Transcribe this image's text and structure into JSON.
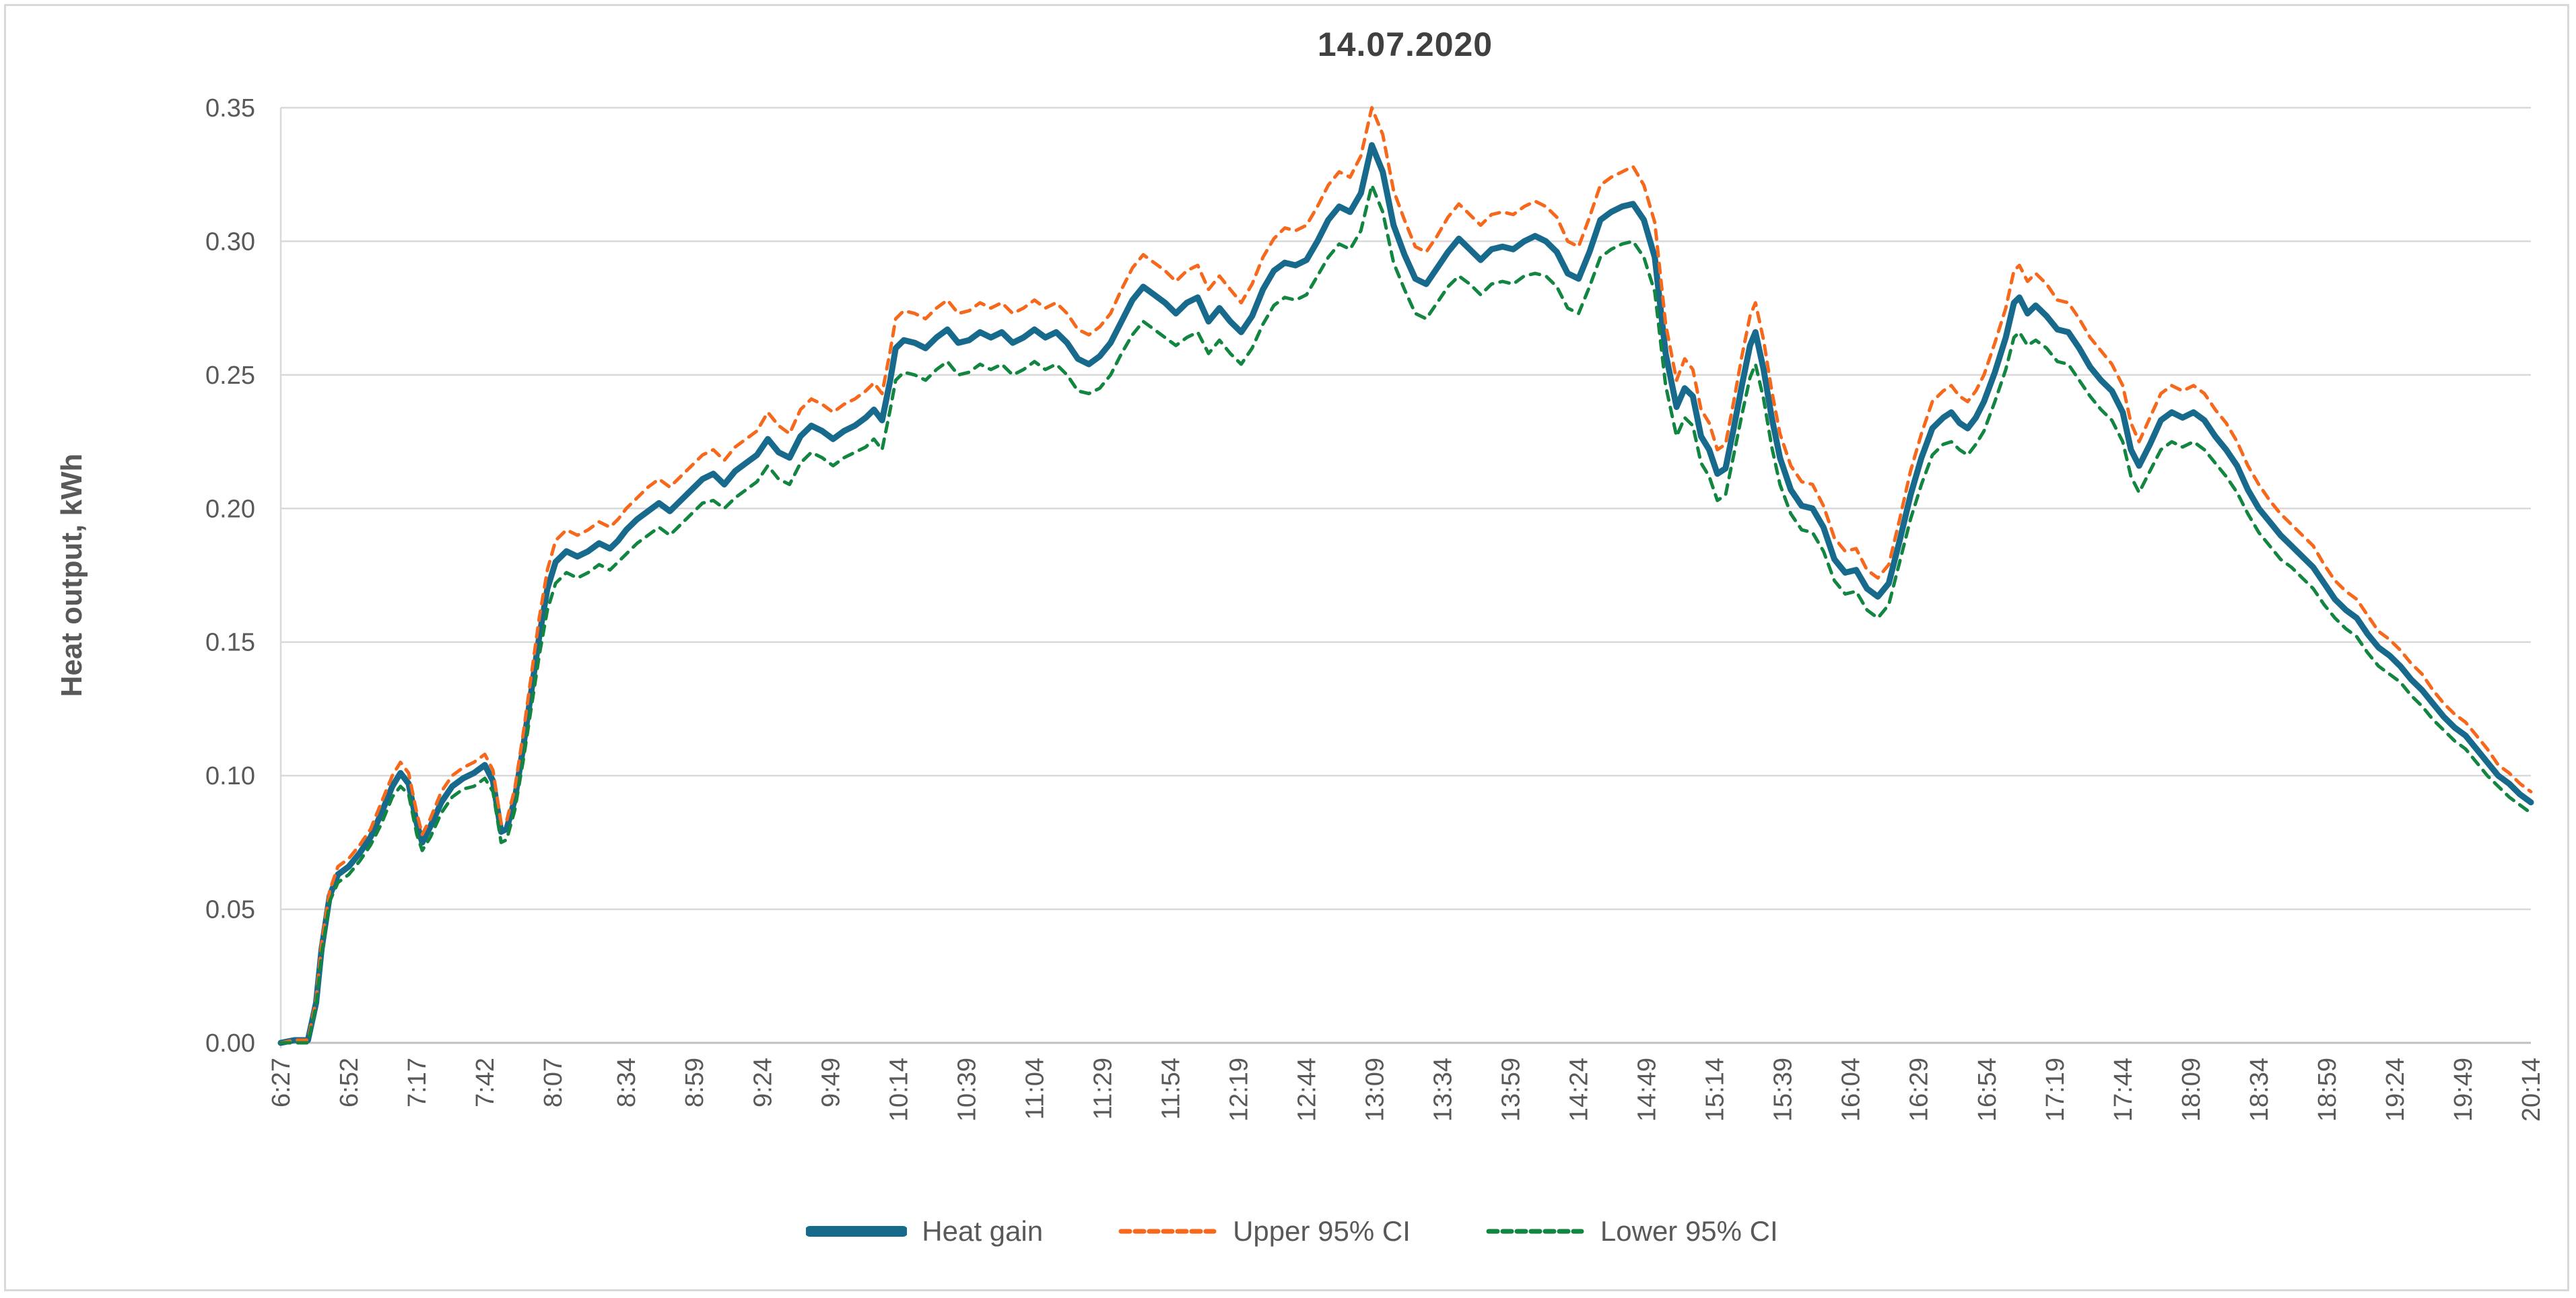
{
  "figure": {
    "title": "14.07.2020"
  },
  "y_axis": {
    "title": "Heat output,  kWh",
    "tick_labels": [
      "0.00",
      "0.05",
      "0.10",
      "0.15",
      "0.20",
      "0.25",
      "0.30",
      "0.35"
    ],
    "min": 0,
    "max": 0.35,
    "step": 0.05
  },
  "x_axis": {
    "tick_labels": [
      "6:27",
      "6:52",
      "7:17",
      "7:42",
      "8:07",
      "8:34",
      "8:59",
      "9:24",
      "9:49",
      "10:14",
      "10:39",
      "11:04",
      "11:29",
      "11:54",
      "12:19",
      "12:44",
      "13:09",
      "13:34",
      "13:59",
      "14:24",
      "14:49",
      "15:14",
      "15:39",
      "16:04",
      "16:29",
      "16:54",
      "17:19",
      "17:44",
      "18:09",
      "18:34",
      "18:59",
      "19:24",
      "19:49",
      "20:14"
    ]
  },
  "legend": {
    "items": [
      {
        "label": "Heat gain",
        "color": "#176a8c",
        "style": "solid"
      },
      {
        "label": "Upper 95% CI",
        "color": "#f6691c",
        "style": "dashed"
      },
      {
        "label": "Lower 95% CI",
        "color": "#128540",
        "style": "dashed"
      }
    ]
  },
  "colors": {
    "grid": "#d9d9d9",
    "axis": "#bfbfbf",
    "tick_text": "#595959",
    "title_text": "#404040",
    "border": "#d9d9d9"
  },
  "chart_data": {
    "type": "line",
    "title": "14.07.2020",
    "xlabel": "",
    "ylabel": "Heat output,  kWh",
    "ylim": [
      0,
      0.35
    ],
    "grid": "horizontal",
    "legend_position": "bottom",
    "x_tick_labels": [
      "6:27",
      "6:52",
      "7:17",
      "7:42",
      "8:07",
      "8:34",
      "8:59",
      "9:24",
      "9:49",
      "10:14",
      "10:39",
      "11:04",
      "11:29",
      "11:54",
      "12:19",
      "12:44",
      "13:09",
      "13:34",
      "13:59",
      "14:24",
      "14:49",
      "15:14",
      "15:39",
      "16:04",
      "16:29",
      "16:54",
      "17:19",
      "17:44",
      "18:09",
      "18:34",
      "18:59",
      "19:24",
      "19:49",
      "20:14"
    ],
    "x": [
      "6:27",
      "6:32",
      "6:37",
      "6:40",
      "6:42",
      "6:45",
      "6:48",
      "6:52",
      "6:56",
      "7:00",
      "7:04",
      "7:08",
      "7:11",
      "7:14",
      "7:17",
      "7:19",
      "7:22",
      "7:26",
      "7:30",
      "7:34",
      "7:38",
      "7:42",
      "7:45",
      "7:48",
      "7:50",
      "7:53",
      "7:56",
      "7:59",
      "8:02",
      "8:05",
      "8:08",
      "8:12",
      "8:16",
      "8:20",
      "8:24",
      "8:28",
      "8:31",
      "8:34",
      "8:38",
      "8:42",
      "8:46",
      "8:50",
      "8:54",
      "8:58",
      "9:02",
      "9:06",
      "9:10",
      "9:14",
      "9:18",
      "9:22",
      "9:26",
      "9:30",
      "9:34",
      "9:38",
      "9:42",
      "9:46",
      "9:50",
      "9:54",
      "9:58",
      "10:02",
      "10:05",
      "10:08",
      "10:11",
      "10:13",
      "10:16",
      "10:20",
      "10:24",
      "10:28",
      "10:32",
      "10:36",
      "10:40",
      "10:44",
      "10:48",
      "10:52",
      "10:56",
      "11:00",
      "11:04",
      "11:08",
      "11:12",
      "11:16",
      "11:20",
      "11:24",
      "11:28",
      "11:32",
      "11:36",
      "11:40",
      "11:44",
      "11:48",
      "11:52",
      "11:56",
      "12:00",
      "12:04",
      "12:08",
      "12:12",
      "12:16",
      "12:20",
      "12:24",
      "12:28",
      "12:32",
      "12:36",
      "12:40",
      "12:44",
      "12:48",
      "12:52",
      "12:56",
      "13:00",
      "13:04",
      "13:08",
      "13:12",
      "13:16",
      "13:20",
      "13:24",
      "13:28",
      "13:32",
      "13:36",
      "13:40",
      "13:44",
      "13:48",
      "13:52",
      "13:56",
      "14:00",
      "14:04",
      "14:08",
      "14:12",
      "14:16",
      "14:20",
      "14:24",
      "14:28",
      "14:32",
      "14:36",
      "14:40",
      "14:44",
      "14:48",
      "14:52",
      "14:56",
      "15:00",
      "15:03",
      "15:06",
      "15:09",
      "15:12",
      "15:15",
      "15:18",
      "15:21",
      "15:24",
      "15:27",
      "15:29",
      "15:32",
      "15:35",
      "15:38",
      "15:42",
      "15:46",
      "15:50",
      "15:54",
      "15:58",
      "16:02",
      "16:06",
      "16:10",
      "16:14",
      "16:18",
      "16:22",
      "16:26",
      "16:30",
      "16:34",
      "16:38",
      "16:41",
      "16:44",
      "16:47",
      "16:50",
      "16:53",
      "16:57",
      "17:01",
      "17:04",
      "17:06",
      "17:09",
      "17:12",
      "17:16",
      "17:20",
      "17:24",
      "17:28",
      "17:32",
      "17:36",
      "17:40",
      "17:44",
      "17:47",
      "17:50",
      "17:54",
      "17:58",
      "18:02",
      "18:06",
      "18:10",
      "18:14",
      "18:18",
      "18:22",
      "18:26",
      "18:30",
      "18:34",
      "18:38",
      "18:42",
      "18:46",
      "18:50",
      "18:54",
      "18:58",
      "19:02",
      "19:06",
      "19:10",
      "19:14",
      "19:18",
      "19:22",
      "19:26",
      "19:30",
      "19:34",
      "19:38",
      "19:42",
      "19:46",
      "19:50",
      "19:54",
      "19:58",
      "20:02",
      "20:06",
      "20:10",
      "20:14"
    ],
    "series": [
      {
        "name": "Heat gain",
        "style": "solid",
        "color": "#176a8c",
        "stroke_width": 9,
        "values": [
          0.0,
          0.001,
          0.001,
          0.015,
          0.035,
          0.055,
          0.063,
          0.066,
          0.071,
          0.077,
          0.086,
          0.096,
          0.101,
          0.097,
          0.082,
          0.075,
          0.081,
          0.09,
          0.096,
          0.099,
          0.101,
          0.104,
          0.098,
          0.079,
          0.08,
          0.091,
          0.11,
          0.131,
          0.152,
          0.17,
          0.18,
          0.184,
          0.182,
          0.184,
          0.187,
          0.185,
          0.188,
          0.192,
          0.196,
          0.199,
          0.202,
          0.199,
          0.203,
          0.207,
          0.211,
          0.213,
          0.209,
          0.214,
          0.217,
          0.22,
          0.226,
          0.221,
          0.219,
          0.227,
          0.231,
          0.229,
          0.226,
          0.229,
          0.231,
          0.234,
          0.237,
          0.233,
          0.248,
          0.26,
          0.263,
          0.262,
          0.26,
          0.264,
          0.267,
          0.262,
          0.263,
          0.266,
          0.264,
          0.266,
          0.262,
          0.264,
          0.267,
          0.264,
          0.266,
          0.262,
          0.256,
          0.254,
          0.257,
          0.262,
          0.27,
          0.278,
          0.283,
          0.28,
          0.277,
          0.273,
          0.277,
          0.279,
          0.27,
          0.275,
          0.27,
          0.266,
          0.272,
          0.282,
          0.289,
          0.292,
          0.291,
          0.293,
          0.3,
          0.308,
          0.313,
          0.311,
          0.318,
          0.336,
          0.326,
          0.306,
          0.295,
          0.286,
          0.284,
          0.29,
          0.296,
          0.301,
          0.297,
          0.293,
          0.297,
          0.298,
          0.297,
          0.3,
          0.302,
          0.3,
          0.296,
          0.288,
          0.286,
          0.296,
          0.308,
          0.311,
          0.313,
          0.314,
          0.308,
          0.294,
          0.258,
          0.238,
          0.245,
          0.242,
          0.227,
          0.222,
          0.213,
          0.215,
          0.23,
          0.246,
          0.261,
          0.266,
          0.252,
          0.234,
          0.219,
          0.207,
          0.201,
          0.2,
          0.193,
          0.181,
          0.176,
          0.177,
          0.17,
          0.167,
          0.172,
          0.188,
          0.205,
          0.219,
          0.23,
          0.234,
          0.236,
          0.232,
          0.23,
          0.234,
          0.24,
          0.251,
          0.264,
          0.277,
          0.279,
          0.273,
          0.276,
          0.272,
          0.267,
          0.266,
          0.26,
          0.253,
          0.248,
          0.244,
          0.236,
          0.222,
          0.216,
          0.224,
          0.233,
          0.236,
          0.234,
          0.236,
          0.233,
          0.227,
          0.222,
          0.216,
          0.207,
          0.2,
          0.195,
          0.19,
          0.186,
          0.182,
          0.178,
          0.172,
          0.166,
          0.162,
          0.159,
          0.153,
          0.148,
          0.145,
          0.141,
          0.136,
          0.132,
          0.127,
          0.122,
          0.118,
          0.115,
          0.11,
          0.105,
          0.1,
          0.097,
          0.093,
          0.09
        ]
      },
      {
        "name": "Upper 95% CI",
        "style": "dashed",
        "color": "#f6691c",
        "stroke_width": 5,
        "values": [
          0.0,
          0.001,
          0.001,
          0.016,
          0.037,
          0.057,
          0.066,
          0.069,
          0.074,
          0.08,
          0.09,
          0.1,
          0.105,
          0.101,
          0.086,
          0.078,
          0.084,
          0.094,
          0.1,
          0.103,
          0.105,
          0.108,
          0.102,
          0.082,
          0.083,
          0.095,
          0.115,
          0.137,
          0.159,
          0.177,
          0.188,
          0.192,
          0.19,
          0.192,
          0.195,
          0.193,
          0.196,
          0.2,
          0.204,
          0.208,
          0.211,
          0.208,
          0.212,
          0.216,
          0.22,
          0.222,
          0.218,
          0.223,
          0.226,
          0.229,
          0.236,
          0.231,
          0.228,
          0.237,
          0.241,
          0.239,
          0.236,
          0.239,
          0.241,
          0.244,
          0.247,
          0.243,
          0.259,
          0.271,
          0.274,
          0.273,
          0.271,
          0.275,
          0.278,
          0.273,
          0.274,
          0.277,
          0.275,
          0.277,
          0.273,
          0.275,
          0.278,
          0.275,
          0.277,
          0.273,
          0.267,
          0.265,
          0.268,
          0.273,
          0.282,
          0.29,
          0.295,
          0.292,
          0.289,
          0.285,
          0.289,
          0.291,
          0.282,
          0.287,
          0.282,
          0.277,
          0.284,
          0.294,
          0.301,
          0.305,
          0.304,
          0.306,
          0.313,
          0.321,
          0.326,
          0.324,
          0.332,
          0.35,
          0.34,
          0.319,
          0.308,
          0.298,
          0.296,
          0.302,
          0.309,
          0.314,
          0.31,
          0.306,
          0.31,
          0.311,
          0.31,
          0.313,
          0.315,
          0.313,
          0.309,
          0.3,
          0.298,
          0.309,
          0.321,
          0.324,
          0.326,
          0.328,
          0.321,
          0.307,
          0.269,
          0.248,
          0.256,
          0.252,
          0.237,
          0.232,
          0.222,
          0.224,
          0.24,
          0.257,
          0.272,
          0.277,
          0.263,
          0.244,
          0.228,
          0.216,
          0.21,
          0.209,
          0.201,
          0.189,
          0.184,
          0.185,
          0.177,
          0.174,
          0.179,
          0.196,
          0.214,
          0.228,
          0.24,
          0.244,
          0.246,
          0.242,
          0.24,
          0.244,
          0.25,
          0.262,
          0.275,
          0.289,
          0.291,
          0.285,
          0.288,
          0.284,
          0.278,
          0.277,
          0.271,
          0.264,
          0.259,
          0.254,
          0.246,
          0.232,
          0.225,
          0.234,
          0.243,
          0.246,
          0.244,
          0.246,
          0.243,
          0.237,
          0.232,
          0.225,
          0.216,
          0.209,
          0.203,
          0.198,
          0.194,
          0.19,
          0.186,
          0.179,
          0.173,
          0.169,
          0.166,
          0.16,
          0.154,
          0.151,
          0.147,
          0.142,
          0.138,
          0.132,
          0.127,
          0.123,
          0.12,
          0.115,
          0.11,
          0.104,
          0.101,
          0.097,
          0.094
        ]
      },
      {
        "name": "Lower 95% CI",
        "style": "dashed",
        "color": "#128540",
        "stroke_width": 5,
        "values": [
          0.0,
          0.0,
          0.0,
          0.014,
          0.033,
          0.053,
          0.06,
          0.063,
          0.068,
          0.074,
          0.082,
          0.092,
          0.096,
          0.093,
          0.078,
          0.072,
          0.077,
          0.086,
          0.092,
          0.095,
          0.096,
          0.099,
          0.094,
          0.075,
          0.076,
          0.087,
          0.105,
          0.125,
          0.145,
          0.162,
          0.172,
          0.176,
          0.174,
          0.176,
          0.179,
          0.177,
          0.18,
          0.183,
          0.187,
          0.19,
          0.193,
          0.19,
          0.194,
          0.198,
          0.202,
          0.203,
          0.2,
          0.204,
          0.207,
          0.21,
          0.216,
          0.211,
          0.209,
          0.217,
          0.221,
          0.219,
          0.216,
          0.219,
          0.221,
          0.223,
          0.226,
          0.222,
          0.237,
          0.248,
          0.251,
          0.25,
          0.248,
          0.252,
          0.255,
          0.25,
          0.251,
          0.254,
          0.252,
          0.254,
          0.25,
          0.252,
          0.255,
          0.252,
          0.254,
          0.25,
          0.244,
          0.243,
          0.245,
          0.25,
          0.258,
          0.265,
          0.27,
          0.267,
          0.264,
          0.261,
          0.264,
          0.266,
          0.258,
          0.263,
          0.258,
          0.254,
          0.26,
          0.269,
          0.276,
          0.279,
          0.278,
          0.28,
          0.287,
          0.294,
          0.299,
          0.297,
          0.304,
          0.321,
          0.311,
          0.292,
          0.282,
          0.273,
          0.271,
          0.277,
          0.283,
          0.287,
          0.284,
          0.28,
          0.284,
          0.285,
          0.284,
          0.287,
          0.288,
          0.287,
          0.283,
          0.275,
          0.273,
          0.283,
          0.294,
          0.297,
          0.299,
          0.3,
          0.294,
          0.281,
          0.246,
          0.227,
          0.234,
          0.231,
          0.217,
          0.212,
          0.203,
          0.205,
          0.22,
          0.235,
          0.249,
          0.254,
          0.241,
          0.223,
          0.209,
          0.198,
          0.192,
          0.191,
          0.184,
          0.173,
          0.168,
          0.169,
          0.162,
          0.159,
          0.164,
          0.18,
          0.196,
          0.209,
          0.22,
          0.224,
          0.225,
          0.222,
          0.22,
          0.224,
          0.229,
          0.24,
          0.252,
          0.264,
          0.266,
          0.261,
          0.263,
          0.26,
          0.255,
          0.254,
          0.248,
          0.242,
          0.237,
          0.233,
          0.225,
          0.212,
          0.206,
          0.214,
          0.222,
          0.225,
          0.223,
          0.225,
          0.222,
          0.217,
          0.212,
          0.206,
          0.198,
          0.191,
          0.186,
          0.181,
          0.178,
          0.174,
          0.17,
          0.164,
          0.159,
          0.155,
          0.152,
          0.146,
          0.141,
          0.138,
          0.135,
          0.13,
          0.126,
          0.121,
          0.117,
          0.113,
          0.11,
          0.105,
          0.1,
          0.096,
          0.092,
          0.089,
          0.086
        ]
      }
    ]
  }
}
